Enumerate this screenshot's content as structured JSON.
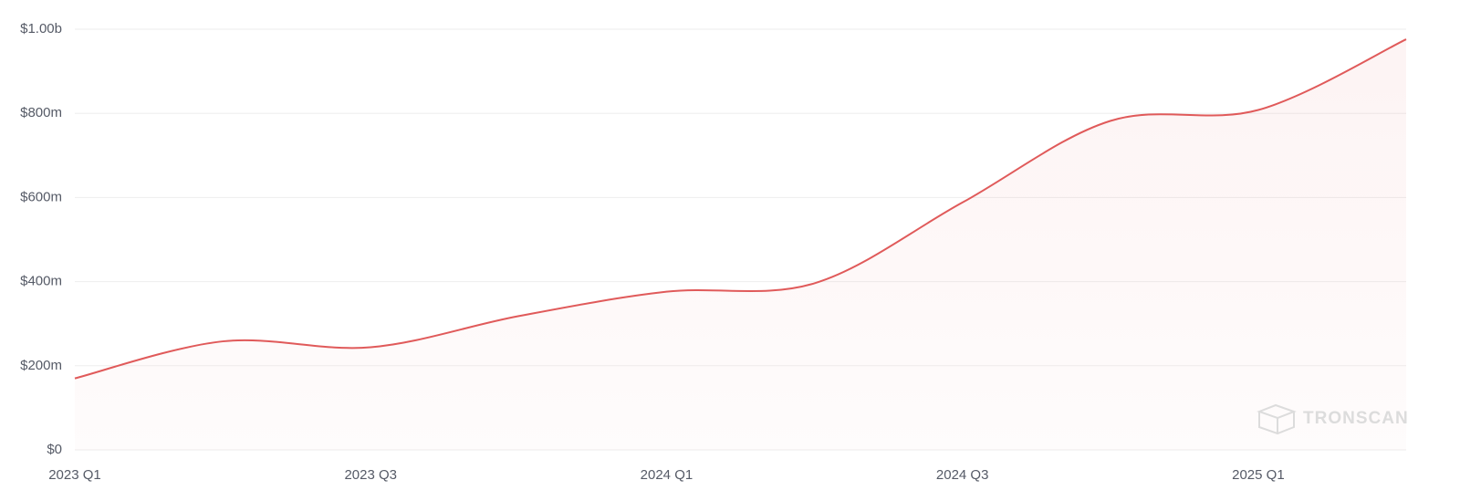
{
  "chart_data": {
    "type": "area",
    "categories": [
      "2023 Q1",
      null,
      "2023 Q3",
      null,
      "2024 Q1",
      null,
      "2024 Q3",
      null,
      "2025 Q1",
      null
    ],
    "series": [
      {
        "color": "#e05a5a",
        "values": [
          170000000,
          258000000,
          244000000,
          318000000,
          376000000,
          396000000,
          588000000,
          782000000,
          808000000,
          976000000
        ]
      }
    ],
    "ylim": [
      0,
      1000000000
    ],
    "yticks": [
      {
        "value": 0,
        "label": "$0"
      },
      {
        "value": 200000000,
        "label": "$200m"
      },
      {
        "value": 400000000,
        "label": "$400m"
      },
      {
        "value": 600000000,
        "label": "$600m"
      },
      {
        "value": 800000000,
        "label": "$800m"
      },
      {
        "value": 1000000000,
        "label": "$1.00b"
      }
    ],
    "grid": true,
    "watermark": "TRONSCAN"
  }
}
